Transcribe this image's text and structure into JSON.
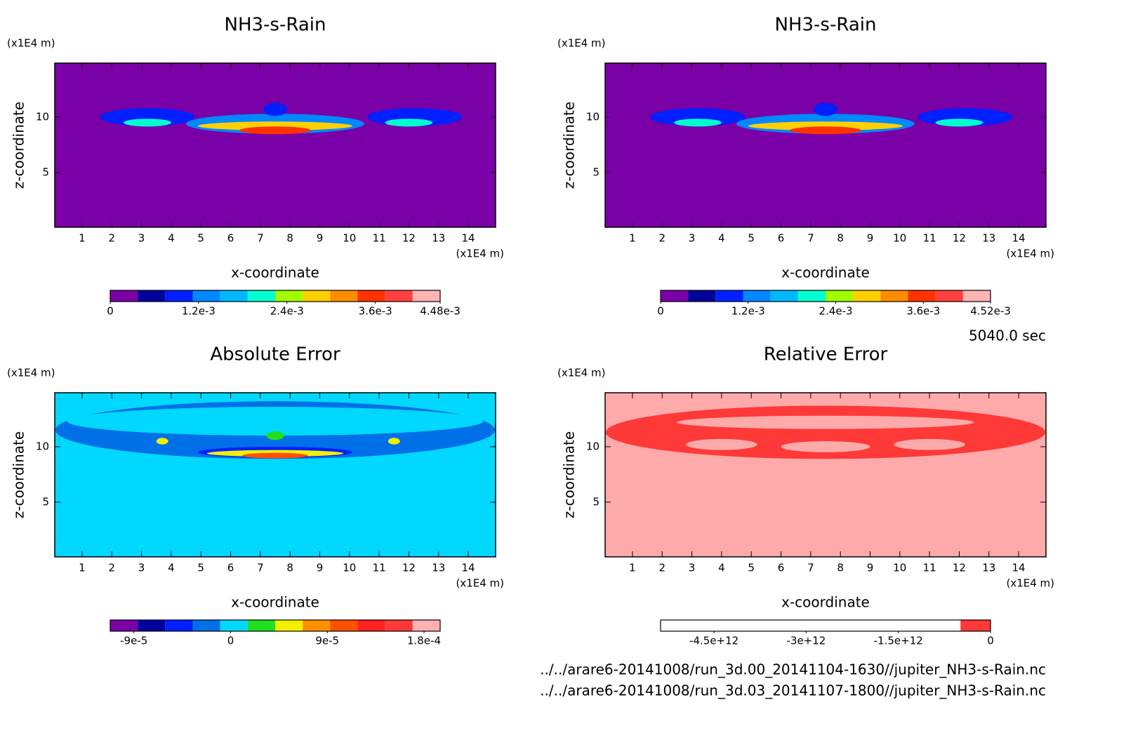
{
  "chart_data": [
    {
      "type": "contour",
      "title": "NH3-s-Rain",
      "xlabel": "x-coordinate",
      "ylabel": "z-coordinate",
      "x_unit": "(x1E4 m)",
      "y_unit": "(x1E4 m)",
      "xlim": [
        0.08,
        14.92
      ],
      "ylim": [
        0.06,
        14.87
      ],
      "xticks": [
        1,
        2,
        3,
        4,
        5,
        6,
        7,
        8,
        9,
        10,
        11,
        12,
        13,
        14
      ],
      "yticks": [
        5,
        10
      ],
      "field_color": "#7a00a8",
      "colorbar": {
        "clim": [
          0,
          0.00448
        ],
        "colors": [
          "#7a00a8",
          "#00009c",
          "#0020ff",
          "#0088ff",
          "#00b8ff",
          "#00ffd0",
          "#a0ff00",
          "#ffd000",
          "#ff8c00",
          "#ff3200",
          "#ff4040",
          "#ffb4b4"
        ],
        "ticks": [
          0,
          {
            "value": 0.0012,
            "label": "1.2e-3"
          },
          {
            "value": 0.0024,
            "label": "2.4e-3"
          },
          {
            "value": 0.0036,
            "label": "3.6e-3"
          },
          {
            "value": 0.00448,
            "label": "4.48e-3"
          }
        ]
      }
    },
    {
      "type": "contour",
      "title": "NH3-s-Rain",
      "xlabel": "x-coordinate",
      "ylabel": "z-coordinate",
      "x_unit": "(x1E4 m)",
      "y_unit": "(x1E4 m)",
      "xlim": [
        0.08,
        14.92
      ],
      "ylim": [
        0.06,
        14.87
      ],
      "xticks": [
        1,
        2,
        3,
        4,
        5,
        6,
        7,
        8,
        9,
        10,
        11,
        12,
        13,
        14
      ],
      "yticks": [
        5,
        10
      ],
      "field_color": "#7a00a8",
      "colorbar": {
        "clim": [
          0,
          0.00452
        ],
        "colors": [
          "#7a00a8",
          "#00009c",
          "#0020ff",
          "#0088ff",
          "#00b8ff",
          "#00ffd0",
          "#a0ff00",
          "#ffd000",
          "#ff8c00",
          "#ff3200",
          "#ff4040",
          "#ffb4b4"
        ],
        "ticks": [
          0,
          {
            "value": 0.0012,
            "label": "1.2e-3"
          },
          {
            "value": 0.0024,
            "label": "2.4e-3"
          },
          {
            "value": 0.0036,
            "label": "3.6e-3"
          },
          {
            "value": 0.00452,
            "label": "4.52e-3"
          }
        ]
      }
    },
    {
      "type": "contour",
      "title": "Absolute Error",
      "xlabel": "x-coordinate",
      "ylabel": "z-coordinate",
      "x_unit": "(x1E4 m)",
      "y_unit": "(x1E4 m)",
      "xlim": [
        0.08,
        14.92
      ],
      "ylim": [
        0.06,
        14.87
      ],
      "xticks": [
        1,
        2,
        3,
        4,
        5,
        6,
        7,
        8,
        9,
        10,
        11,
        12,
        13,
        14
      ],
      "yticks": [
        5,
        10
      ],
      "field_color": "#00d8ff",
      "colorbar": {
        "clim": [
          -0.000112,
          0.000195
        ],
        "colors": [
          "#7a00a8",
          "#00009c",
          "#0020ff",
          "#0070e8",
          "#00d8ff",
          "#20e020",
          "#f0f000",
          "#ff9000",
          "#ff5000",
          "#ff2020",
          "#ff3838",
          "#ffb0b0"
        ],
        "ticks": [
          {
            "value": -9e-05,
            "label": "-9e-5"
          },
          0,
          {
            "value": 9e-05,
            "label": "9e-5"
          },
          {
            "value": 0.00018,
            "label": "1.8e-4"
          }
        ]
      }
    },
    {
      "type": "contour",
      "title": "Relative Error",
      "xlabel": "x-coordinate",
      "ylabel": "z-coordinate",
      "x_unit": "(x1E4 m)",
      "y_unit": "(x1E4 m)",
      "xlim": [
        0.08,
        14.92
      ],
      "ylim": [
        0.06,
        14.87
      ],
      "xticks": [
        1,
        2,
        3,
        4,
        5,
        6,
        7,
        8,
        9,
        10,
        11,
        12,
        13,
        14
      ],
      "yticks": [
        5,
        10
      ],
      "field_color": "#ffaaaa",
      "colorbar": {
        "clim": [
          -5370000000000,
          0
        ],
        "colors": [
          "#ffffff",
          "#ffffff",
          "#ffffff",
          "#ffffff",
          "#ffffff",
          "#ffffff",
          "#ffffff",
          "#ffffff",
          "#ffffff",
          "#ffffff",
          "#ff3838"
        ],
        "ticks": [
          {
            "value": -4500000000000,
            "label": "-4.5e+12"
          },
          {
            "value": -3000000000000,
            "label": "-3e+12"
          },
          {
            "value": -1500000000000,
            "label": "-1.5e+12"
          },
          0
        ]
      }
    }
  ],
  "time": "5040.0 sec",
  "files": [
    "../../arare6-20141008/run_3d.00_20141104-1630//jupiter_NH3-s-Rain.nc",
    "../../arare6-20141008/run_3d.03_20141107-1800//jupiter_NH3-s-Rain.nc"
  ]
}
